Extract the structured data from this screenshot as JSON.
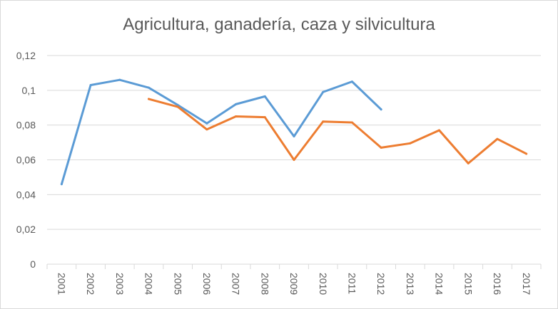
{
  "chart_data": {
    "type": "line",
    "title": "Agricultura, ganadería, caza y silvicultura",
    "categories": [
      "2001",
      "2002",
      "2003",
      "2004",
      "2005",
      "2006",
      "2007",
      "2008",
      "2009",
      "2010",
      "2011",
      "2012",
      "2013",
      "2014",
      "2015",
      "2016",
      "2017"
    ],
    "series": [
      {
        "color": "#5b9bd5",
        "values": [
          0.046,
          0.103,
          0.106,
          0.1015,
          0.0915,
          0.081,
          0.092,
          0.0965,
          0.0735,
          0.099,
          0.105,
          0.089,
          null,
          null,
          null,
          null,
          null
        ]
      },
      {
        "color": "#ed7d31",
        "values": [
          null,
          null,
          null,
          0.095,
          0.0905,
          0.0775,
          0.085,
          0.0845,
          0.06,
          0.082,
          0.0815,
          0.067,
          0.0695,
          0.077,
          0.058,
          0.072,
          0.0635
        ]
      }
    ],
    "ylim": [
      0,
      0.12
    ],
    "yticks": [
      "0",
      "0,02",
      "0,04",
      "0,06",
      "0,08",
      "0,1",
      "0,12"
    ],
    "grid": true,
    "legend": "none"
  }
}
